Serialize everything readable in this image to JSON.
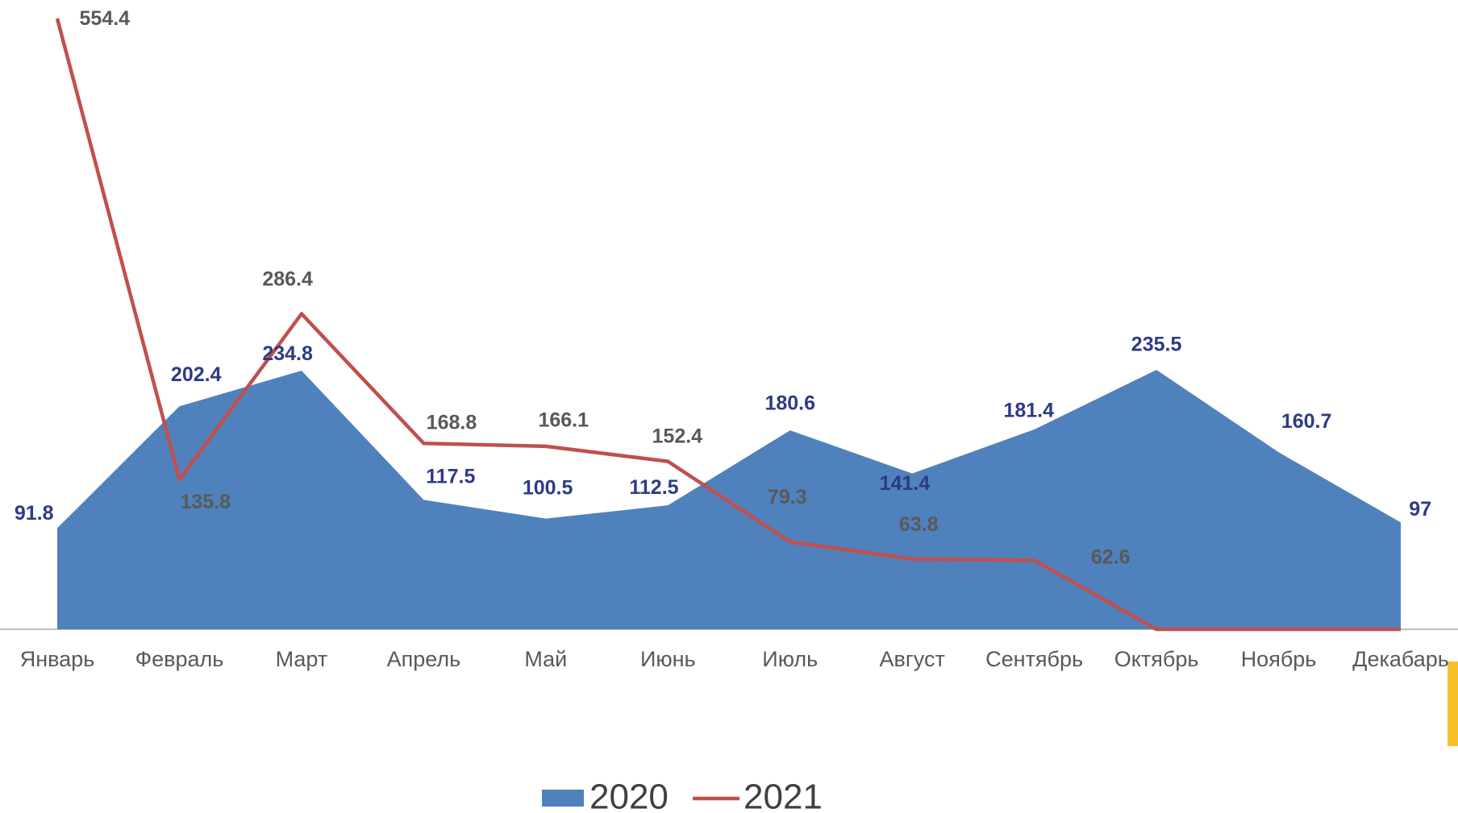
{
  "chart_data": {
    "type": "area-line",
    "categories": [
      "Январь",
      "Февраль",
      "Март",
      "Апрель",
      "Май",
      "Июнь",
      "Июль",
      "Август",
      "Сентябрь",
      "Октябрь",
      "Ноябрь",
      "Декабарь"
    ],
    "series": [
      {
        "name": "2020",
        "type": "area",
        "color": "#4f81bd",
        "label_color": "#2e3a87",
        "values": [
          91.8,
          202.4,
          234.8,
          117.5,
          100.5,
          112.5,
          180.6,
          141.4,
          181.4,
          235.5,
          160.7,
          97
        ]
      },
      {
        "name": "2021",
        "type": "line",
        "color": "#c0504d",
        "label_color": "#595959",
        "values": [
          554.4,
          135.8,
          286.4,
          168.8,
          166.1,
          152.4,
          79.3,
          63.8,
          62.6,
          0,
          0,
          0
        ],
        "value_labels": [
          "554.4",
          "135.8",
          "286.4",
          "168.8",
          "166.1",
          "152.4",
          "79.3",
          "63.8",
          "62.6",
          null,
          null,
          null
        ]
      }
    ],
    "legend": "bottom"
  }
}
